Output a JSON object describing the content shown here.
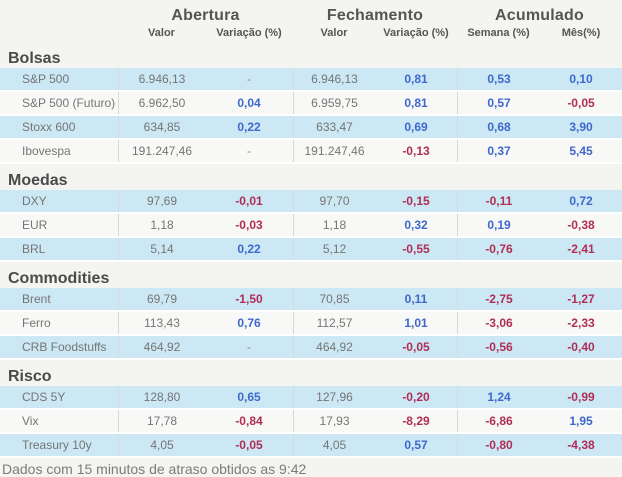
{
  "header": {
    "groups": [
      "Abertura",
      "Fechamento",
      "Acumulado"
    ],
    "columns": [
      "Valor",
      "Variação (%)",
      "Valor",
      "Variação (%)",
      "Semana (%)",
      "Mês(%)"
    ]
  },
  "colors": {
    "positive": "#3e68cc",
    "negative": "#b02e56",
    "row_highlight": "#cbe8f4",
    "row_alternate": "#f8f8f6",
    "header_text": "#555555",
    "value_text": "#757575"
  },
  "sections": [
    {
      "title": "Bolsas",
      "rows": [
        {
          "label": "S&P 500",
          "abertura_valor": "6.946,13",
          "abertura_var": "-",
          "fechamento_valor": "6.946,13",
          "fechamento_var": "0,81",
          "semana": "0,53",
          "mes": "0,10"
        },
        {
          "label": "S&P 500 (Futuro)",
          "abertura_valor": "6.962,50",
          "abertura_var": "0,04",
          "fechamento_valor": "6.959,75",
          "fechamento_var": "0,81",
          "semana": "0,57",
          "mes": "-0,05"
        },
        {
          "label": "Stoxx 600",
          "abertura_valor": "634,85",
          "abertura_var": "0,22",
          "fechamento_valor": "633,47",
          "fechamento_var": "0,69",
          "semana": "0,68",
          "mes": "3,90"
        },
        {
          "label": "Ibovespa",
          "abertura_valor": "191.247,46",
          "abertura_var": "-",
          "fechamento_valor": "191.247,46",
          "fechamento_var": "-0,13",
          "semana": "0,37",
          "mes": "5,45"
        }
      ]
    },
    {
      "title": "Moedas",
      "rows": [
        {
          "label": "DXY",
          "abertura_valor": "97,69",
          "abertura_var": "-0,01",
          "fechamento_valor": "97,70",
          "fechamento_var": "-0,15",
          "semana": "-0,11",
          "mes": "0,72"
        },
        {
          "label": "EUR",
          "abertura_valor": "1,18",
          "abertura_var": "-0,03",
          "fechamento_valor": "1,18",
          "fechamento_var": "0,32",
          "semana": "0,19",
          "mes": "-0,38"
        },
        {
          "label": "BRL",
          "abertura_valor": "5,14",
          "abertura_var": "0,22",
          "fechamento_valor": "5,12",
          "fechamento_var": "-0,55",
          "semana": "-0,76",
          "mes": "-2,41"
        }
      ]
    },
    {
      "title": "Commodities",
      "rows": [
        {
          "label": "Brent",
          "abertura_valor": "69,79",
          "abertura_var": "-1,50",
          "fechamento_valor": "70,85",
          "fechamento_var": "0,11",
          "semana": "-2,75",
          "mes": "-1,27"
        },
        {
          "label": "Ferro",
          "abertura_valor": "113,43",
          "abertura_var": "0,76",
          "fechamento_valor": "112,57",
          "fechamento_var": "1,01",
          "semana": "-3,06",
          "mes": "-2,33"
        },
        {
          "label": "CRB Foodstuffs",
          "abertura_valor": "464,92",
          "abertura_var": "-",
          "fechamento_valor": "464,92",
          "fechamento_var": "-0,05",
          "semana": "-0,56",
          "mes": "-0,40"
        }
      ]
    },
    {
      "title": "Risco",
      "rows": [
        {
          "label": "CDS 5Y",
          "abertura_valor": "128,80",
          "abertura_var": "0,65",
          "fechamento_valor": "127,96",
          "fechamento_var": "-0,20",
          "semana": "1,24",
          "mes": "-0,99"
        },
        {
          "label": "Vix",
          "abertura_valor": "17,78",
          "abertura_var": "-0,84",
          "fechamento_valor": "17,93",
          "fechamento_var": "-8,29",
          "semana": "-6,86",
          "mes": "1,95"
        },
        {
          "label": "Treasury 10y",
          "abertura_valor": "4,05",
          "abertura_var": "-0,05",
          "fechamento_valor": "4,05",
          "fechamento_var": "0,57",
          "semana": "-0,80",
          "mes": "-4,38"
        }
      ]
    }
  ],
  "footer": {
    "text": "Dados com 15 minutos de atraso obtidos as 9:42"
  }
}
